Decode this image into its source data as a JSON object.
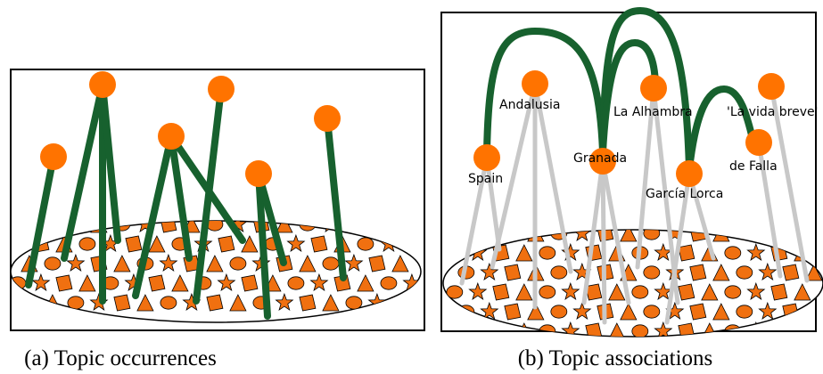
{
  "panel_a": {
    "caption": "(a) Topic occurrences"
  },
  "panel_b": {
    "caption": "(b) Topic associations",
    "topics": [
      {
        "label": "Andalusia"
      },
      {
        "label": "La Alhambra"
      },
      {
        "label": "'La vida breve'"
      },
      {
        "label": "Spain"
      },
      {
        "label": "Granada"
      },
      {
        "label": "de Falla"
      },
      {
        "label": "García Lorca"
      }
    ]
  }
}
